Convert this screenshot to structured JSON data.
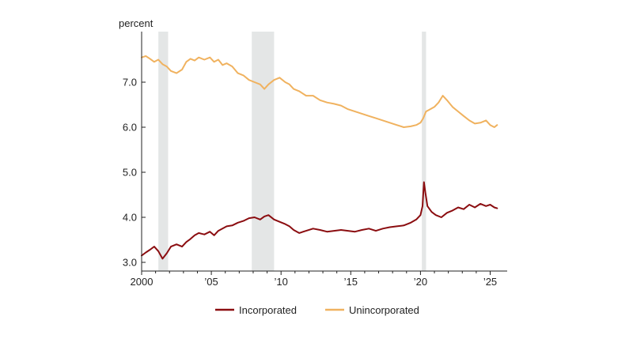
{
  "chart_data": {
    "type": "line",
    "title": "",
    "ylabel": "percent",
    "xlabel": "",
    "xlim": [
      2000,
      2025.7
    ],
    "ylim": [
      2.8,
      8.0
    ],
    "x_ticks": [
      {
        "value": 2000,
        "label": "2000"
      },
      {
        "value": 2005,
        "label": "’05"
      },
      {
        "value": 2010,
        "label": "’10"
      },
      {
        "value": 2015,
        "label": "’15"
      },
      {
        "value": 2020,
        "label": "’20"
      },
      {
        "value": 2025,
        "label": "’25"
      }
    ],
    "y_ticks": [
      {
        "value": 3.0,
        "label": "3.0"
      },
      {
        "value": 4.0,
        "label": "4.0"
      },
      {
        "value": 5.0,
        "label": "5.0"
      },
      {
        "value": 6.0,
        "label": "6.0"
      },
      {
        "value": 7.0,
        "label": "7.0"
      }
    ],
    "recessions": [
      {
        "start": 2001.2,
        "end": 2001.9
      },
      {
        "start": 2007.9,
        "end": 2009.5
      },
      {
        "start": 2020.1,
        "end": 2020.4
      }
    ],
    "series": [
      {
        "name": "Incorporated",
        "color": "#8b0d10",
        "points": [
          [
            2000.0,
            3.15
          ],
          [
            2000.3,
            3.22
          ],
          [
            2000.6,
            3.28
          ],
          [
            2000.9,
            3.35
          ],
          [
            2001.2,
            3.25
          ],
          [
            2001.5,
            3.08
          ],
          [
            2001.8,
            3.2
          ],
          [
            2002.1,
            3.35
          ],
          [
            2002.5,
            3.4
          ],
          [
            2002.9,
            3.35
          ],
          [
            2003.2,
            3.45
          ],
          [
            2003.5,
            3.52
          ],
          [
            2003.8,
            3.6
          ],
          [
            2004.1,
            3.65
          ],
          [
            2004.5,
            3.62
          ],
          [
            2004.9,
            3.68
          ],
          [
            2005.2,
            3.6
          ],
          [
            2005.5,
            3.7
          ],
          [
            2005.8,
            3.75
          ],
          [
            2006.1,
            3.8
          ],
          [
            2006.5,
            3.82
          ],
          [
            2006.9,
            3.88
          ],
          [
            2007.3,
            3.92
          ],
          [
            2007.7,
            3.98
          ],
          [
            2008.1,
            4.0
          ],
          [
            2008.5,
            3.95
          ],
          [
            2008.8,
            4.02
          ],
          [
            2009.1,
            4.05
          ],
          [
            2009.5,
            3.95
          ],
          [
            2009.9,
            3.9
          ],
          [
            2010.3,
            3.85
          ],
          [
            2010.6,
            3.8
          ],
          [
            2010.9,
            3.72
          ],
          [
            2011.3,
            3.65
          ],
          [
            2011.8,
            3.7
          ],
          [
            2012.3,
            3.75
          ],
          [
            2012.8,
            3.72
          ],
          [
            2013.3,
            3.68
          ],
          [
            2013.8,
            3.7
          ],
          [
            2014.3,
            3.72
          ],
          [
            2014.8,
            3.7
          ],
          [
            2015.3,
            3.68
          ],
          [
            2015.8,
            3.72
          ],
          [
            2016.3,
            3.75
          ],
          [
            2016.8,
            3.7
          ],
          [
            2017.3,
            3.75
          ],
          [
            2017.8,
            3.78
          ],
          [
            2018.3,
            3.8
          ],
          [
            2018.8,
            3.82
          ],
          [
            2019.3,
            3.88
          ],
          [
            2019.7,
            3.95
          ],
          [
            2020.0,
            4.05
          ],
          [
            2020.15,
            4.25
          ],
          [
            2020.25,
            4.78
          ],
          [
            2020.35,
            4.55
          ],
          [
            2020.5,
            4.25
          ],
          [
            2020.8,
            4.12
          ],
          [
            2021.1,
            4.05
          ],
          [
            2021.5,
            4.0
          ],
          [
            2021.9,
            4.1
          ],
          [
            2022.3,
            4.15
          ],
          [
            2022.7,
            4.22
          ],
          [
            2023.1,
            4.18
          ],
          [
            2023.5,
            4.28
          ],
          [
            2023.9,
            4.22
          ],
          [
            2024.3,
            4.3
          ],
          [
            2024.7,
            4.25
          ],
          [
            2025.0,
            4.28
          ],
          [
            2025.3,
            4.22
          ],
          [
            2025.5,
            4.2
          ]
        ]
      },
      {
        "name": "Unincorporated",
        "color": "#f0b25f",
        "points": [
          [
            2000.0,
            7.55
          ],
          [
            2000.3,
            7.58
          ],
          [
            2000.6,
            7.52
          ],
          [
            2000.9,
            7.45
          ],
          [
            2001.2,
            7.5
          ],
          [
            2001.5,
            7.4
          ],
          [
            2001.8,
            7.35
          ],
          [
            2002.1,
            7.25
          ],
          [
            2002.5,
            7.2
          ],
          [
            2002.9,
            7.28
          ],
          [
            2003.2,
            7.45
          ],
          [
            2003.5,
            7.52
          ],
          [
            2003.8,
            7.48
          ],
          [
            2004.1,
            7.55
          ],
          [
            2004.5,
            7.5
          ],
          [
            2004.9,
            7.55
          ],
          [
            2005.2,
            7.45
          ],
          [
            2005.5,
            7.5
          ],
          [
            2005.8,
            7.38
          ],
          [
            2006.1,
            7.42
          ],
          [
            2006.5,
            7.35
          ],
          [
            2006.9,
            7.2
          ],
          [
            2007.3,
            7.15
          ],
          [
            2007.7,
            7.05
          ],
          [
            2008.1,
            7.0
          ],
          [
            2008.5,
            6.95
          ],
          [
            2008.8,
            6.85
          ],
          [
            2009.1,
            6.95
          ],
          [
            2009.5,
            7.05
          ],
          [
            2009.9,
            7.1
          ],
          [
            2010.3,
            7.0
          ],
          [
            2010.6,
            6.95
          ],
          [
            2010.9,
            6.85
          ],
          [
            2011.3,
            6.8
          ],
          [
            2011.8,
            6.7
          ],
          [
            2012.3,
            6.7
          ],
          [
            2012.8,
            6.6
          ],
          [
            2013.3,
            6.55
          ],
          [
            2013.8,
            6.52
          ],
          [
            2014.3,
            6.48
          ],
          [
            2014.8,
            6.4
          ],
          [
            2015.3,
            6.35
          ],
          [
            2015.8,
            6.3
          ],
          [
            2016.3,
            6.25
          ],
          [
            2016.8,
            6.2
          ],
          [
            2017.3,
            6.15
          ],
          [
            2017.8,
            6.1
          ],
          [
            2018.3,
            6.05
          ],
          [
            2018.8,
            6.0
          ],
          [
            2019.3,
            6.02
          ],
          [
            2019.7,
            6.05
          ],
          [
            2020.0,
            6.1
          ],
          [
            2020.2,
            6.2
          ],
          [
            2020.4,
            6.35
          ],
          [
            2020.7,
            6.4
          ],
          [
            2021.0,
            6.45
          ],
          [
            2021.3,
            6.55
          ],
          [
            2021.6,
            6.7
          ],
          [
            2021.9,
            6.6
          ],
          [
            2022.3,
            6.45
          ],
          [
            2022.7,
            6.35
          ],
          [
            2023.1,
            6.25
          ],
          [
            2023.5,
            6.15
          ],
          [
            2023.9,
            6.08
          ],
          [
            2024.3,
            6.1
          ],
          [
            2024.7,
            6.15
          ],
          [
            2025.0,
            6.05
          ],
          [
            2025.3,
            6.0
          ],
          [
            2025.5,
            6.05
          ]
        ]
      }
    ],
    "legend": {
      "placement": "bottom-center",
      "items": [
        {
          "label": "Incorporated",
          "color": "#8b0d10"
        },
        {
          "label": "Unincorporated",
          "color": "#f0b25f"
        }
      ]
    }
  }
}
